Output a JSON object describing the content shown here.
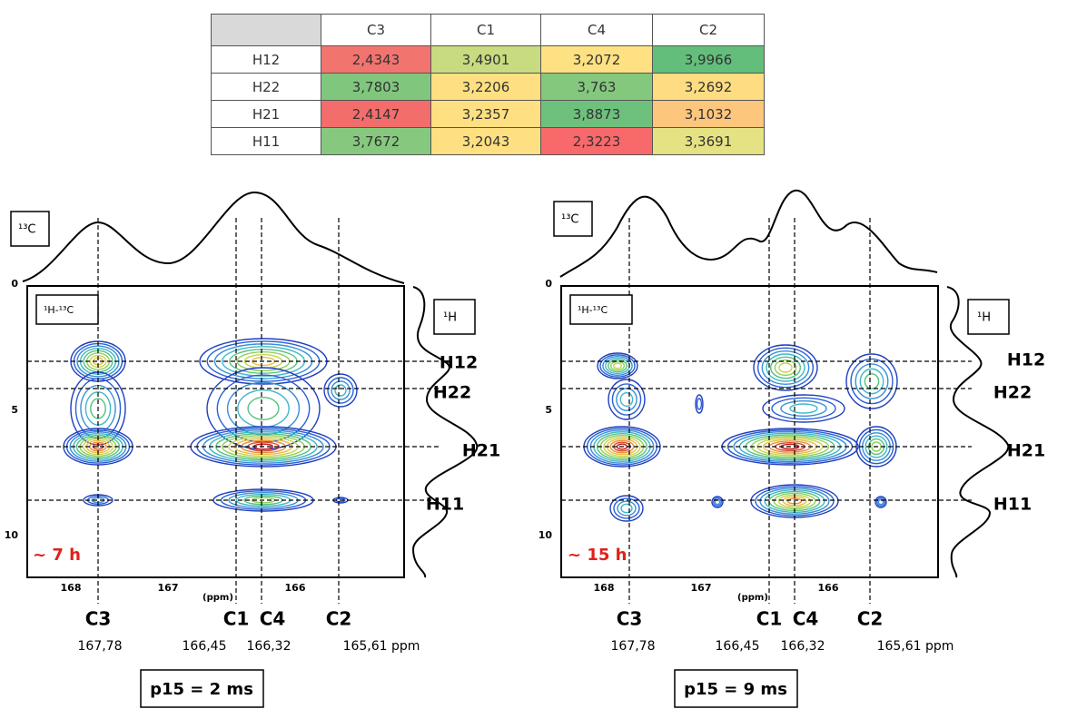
{
  "table": {
    "columns": [
      "C3",
      "C1",
      "C4",
      "C2"
    ],
    "rows": [
      {
        "label": "H12",
        "cells": [
          "2,4343",
          "3,4901",
          "3,2072",
          "3,9966"
        ],
        "colors": [
          "#f2746f",
          "#c8db80",
          "#fde183",
          "#63be7b"
        ]
      },
      {
        "label": "H22",
        "cells": [
          "3,7803",
          "3,2206",
          "3,763",
          "3,2692"
        ],
        "colors": [
          "#80c77d",
          "#fee082",
          "#84c87d",
          "#fedc81"
        ]
      },
      {
        "label": "H21",
        "cells": [
          "2,4147",
          "3,2357",
          "3,8873",
          "3,1032"
        ],
        "colors": [
          "#f26d6b",
          "#fee082",
          "#6dc17c",
          "#fcc67d"
        ]
      },
      {
        "label": "H11",
        "cells": [
          "3,7672",
          "3,2043",
          "2,3223",
          "3,3691"
        ],
        "colors": [
          "#86c97e",
          "#fee082",
          "#f8696b",
          "#e5e283"
        ]
      }
    ]
  },
  "panels": [
    {
      "projection_label": "¹³C",
      "corr_label": "¹H-¹³C",
      "proton_label": "¹H",
      "y_ticks": [
        "0",
        "5",
        "10"
      ],
      "x_ticks": [
        "168",
        "167",
        "166"
      ],
      "unit": "(ppm)",
      "carbons": [
        {
          "name": "C3",
          "shift": "167,78"
        },
        {
          "name": "C1",
          "shift": "166,45"
        },
        {
          "name": "C4",
          "shift": "166,32"
        },
        {
          "name": "C2",
          "shift": "165,61 ppm"
        }
      ],
      "protons": [
        "H12",
        "H22",
        "H21",
        "H11"
      ],
      "time": "~ 7 h",
      "p15": "p15 = 2 ms"
    },
    {
      "projection_label": "¹³C",
      "corr_label": "¹H-¹³C",
      "proton_label": "¹H",
      "y_ticks": [
        "0",
        "5",
        "10"
      ],
      "x_ticks": [
        "168",
        "167",
        "166"
      ],
      "unit": "(ppm)",
      "carbons": [
        {
          "name": "C3",
          "shift": "167,78"
        },
        {
          "name": "C1",
          "shift": "166,45"
        },
        {
          "name": "C4",
          "shift": "166,32"
        },
        {
          "name": "C2",
          "shift": "165,61 ppm"
        }
      ],
      "protons": [
        "H12",
        "H22",
        "H21",
        "H11"
      ],
      "time": "~ 15 h",
      "p15": "p15 = 9 ms"
    }
  ]
}
